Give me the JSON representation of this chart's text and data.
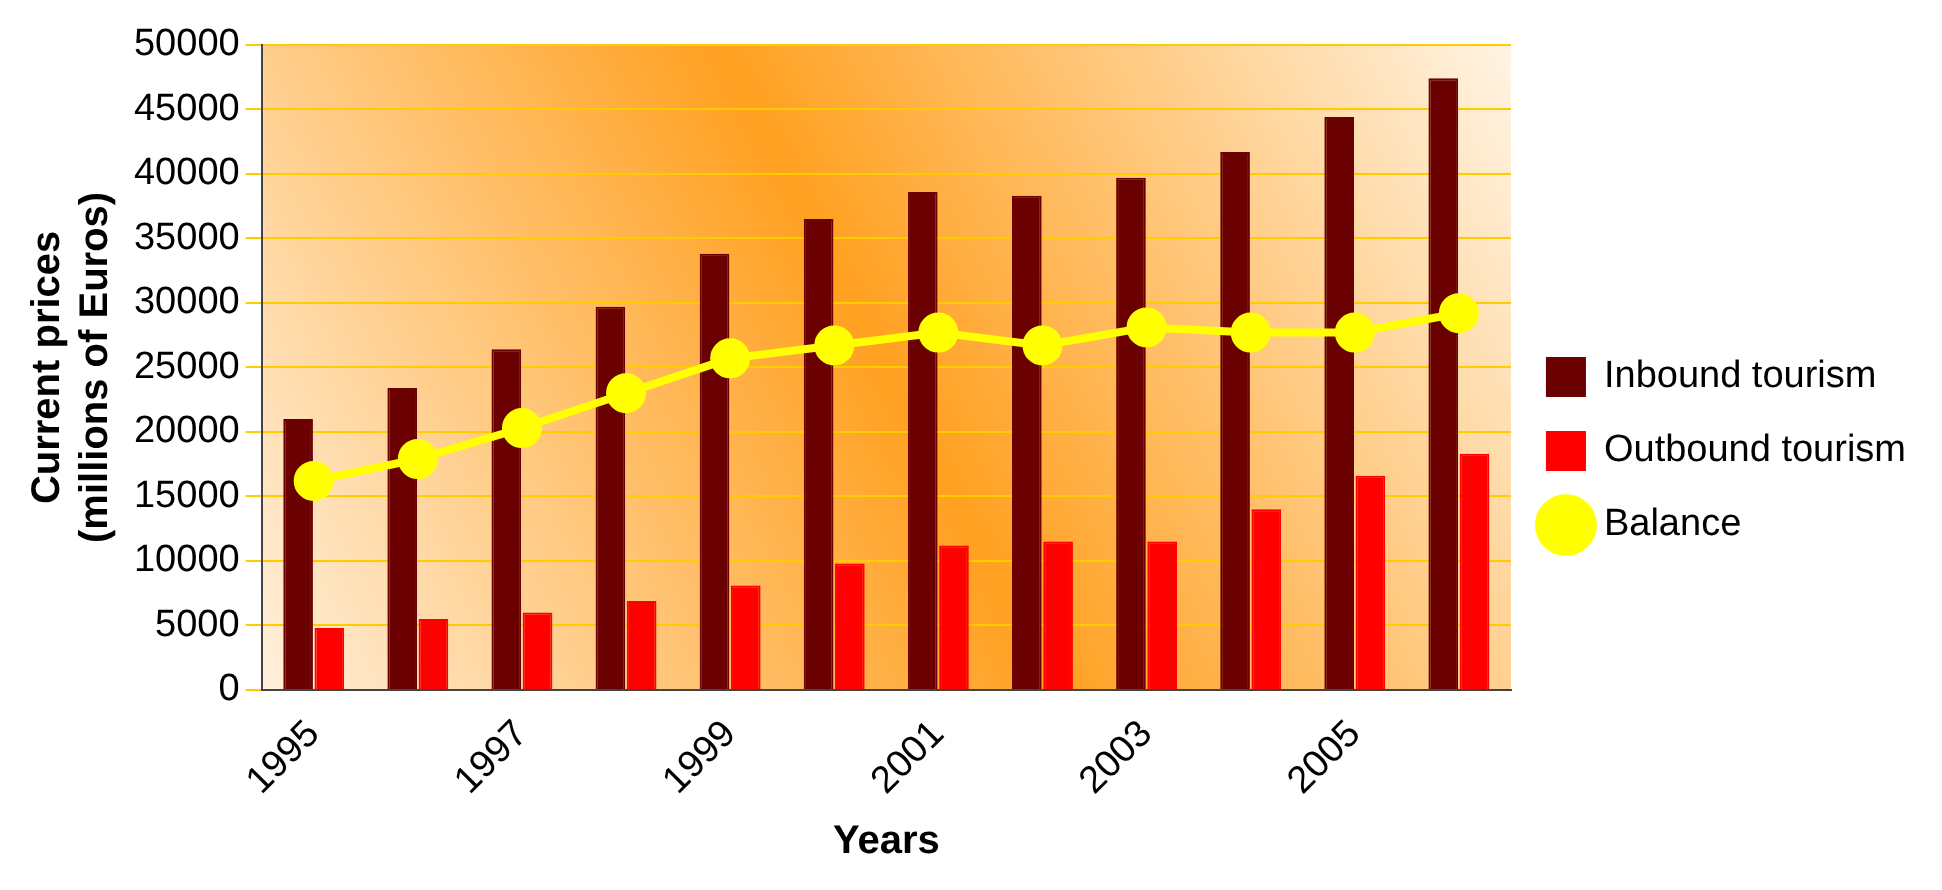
{
  "chart_data": {
    "type": "bar",
    "xlabel": "Years",
    "ylabel": "Current prices\n(millions of Euros)",
    "categories": [
      "1995",
      null,
      "1997",
      null,
      "1999",
      null,
      "2001",
      null,
      "2003",
      null,
      "2005",
      null
    ],
    "series": [
      {
        "name": "Inbound tourism",
        "color": "#6b0000",
        "values": [
          21000,
          23400,
          26400,
          29700,
          33800,
          36500,
          38600,
          38300,
          39700,
          41700,
          44400,
          47400
        ]
      },
      {
        "name": "Outbound tourism",
        "color": "#ff0000",
        "values": [
          4800,
          5500,
          6000,
          6900,
          8100,
          9800,
          11200,
          11500,
          11500,
          14000,
          16600,
          18300
        ]
      },
      {
        "name": "Balance",
        "type": "line",
        "color": "#ffff00",
        "values": [
          16200,
          17900,
          20300,
          23000,
          25700,
          26700,
          27700,
          26700,
          28100,
          27700,
          27700,
          29200
        ]
      }
    ],
    "ylim": [
      0,
      50000
    ],
    "yticks": [
      0,
      5000,
      10000,
      15000,
      20000,
      25000,
      30000,
      35000,
      40000,
      45000,
      50000
    ],
    "grid": "y",
    "legend": "right",
    "marker": "circle",
    "line_style": "solid"
  }
}
